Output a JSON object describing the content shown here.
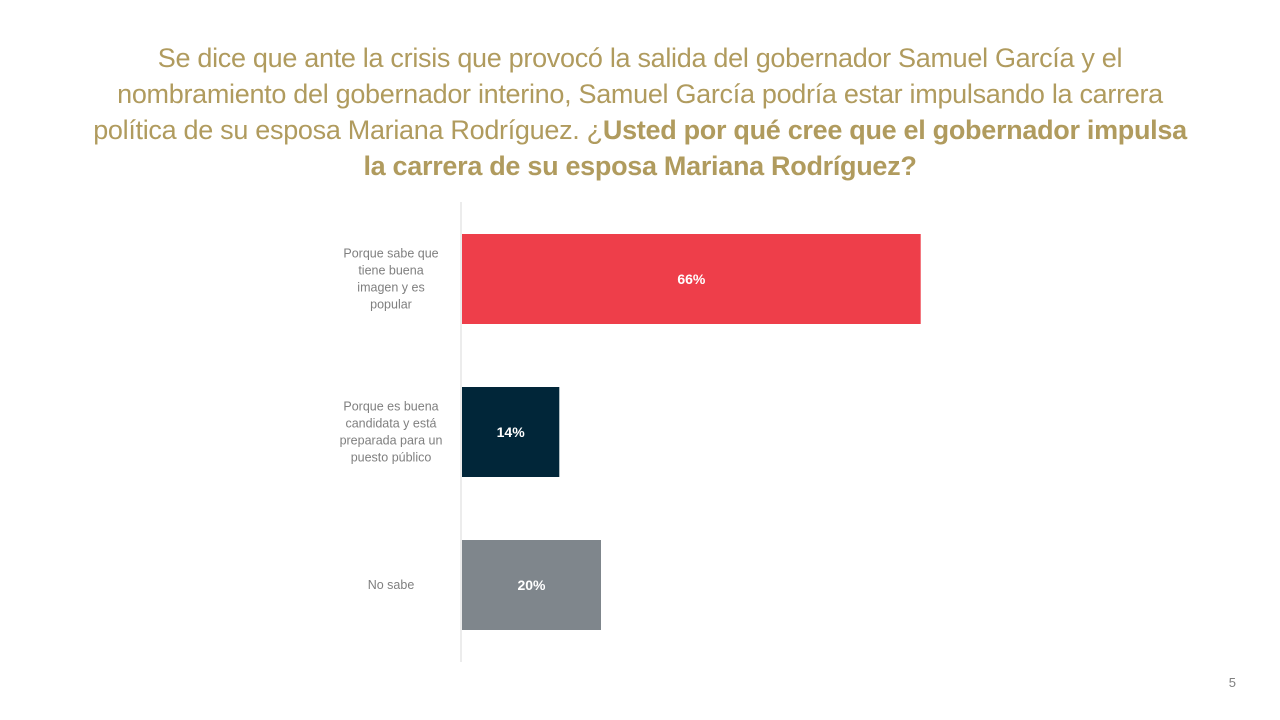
{
  "slide": {
    "title_lead": "Se dice que ante la crisis que provocó la salida del gobernador Samuel García y el nombramiento del gobernador interino, Samuel García podría estar impulsando la carrera política de su esposa Mariana Rodríguez. ¿",
    "title_question": "Usted por qué cree que el gobernador impulsa la carrera de su esposa Mariana Rodríguez?",
    "page_number": "5"
  },
  "chart_data": {
    "type": "bar",
    "orientation": "horizontal",
    "categories": [
      "Porque sabe que tiene buena imagen y es popular",
      "Porque es buena candidata y está preparada para un puesto público",
      "No sabe"
    ],
    "category_lines": [
      [
        "Porque sabe que",
        "tiene buena",
        "imagen y es",
        "popular"
      ],
      [
        "Porque es buena",
        "candidata y está",
        "preparada para un",
        "puesto público"
      ],
      [
        "No sabe"
      ]
    ],
    "values": [
      66,
      14,
      20
    ],
    "labels": [
      "66%",
      "14%",
      "20%"
    ],
    "colors": [
      "#EE3E4A",
      "#012639",
      "#7F868C"
    ],
    "xlim": [
      0,
      100
    ],
    "grid": false,
    "legend": "none",
    "label_color": "#FFFFFF"
  }
}
